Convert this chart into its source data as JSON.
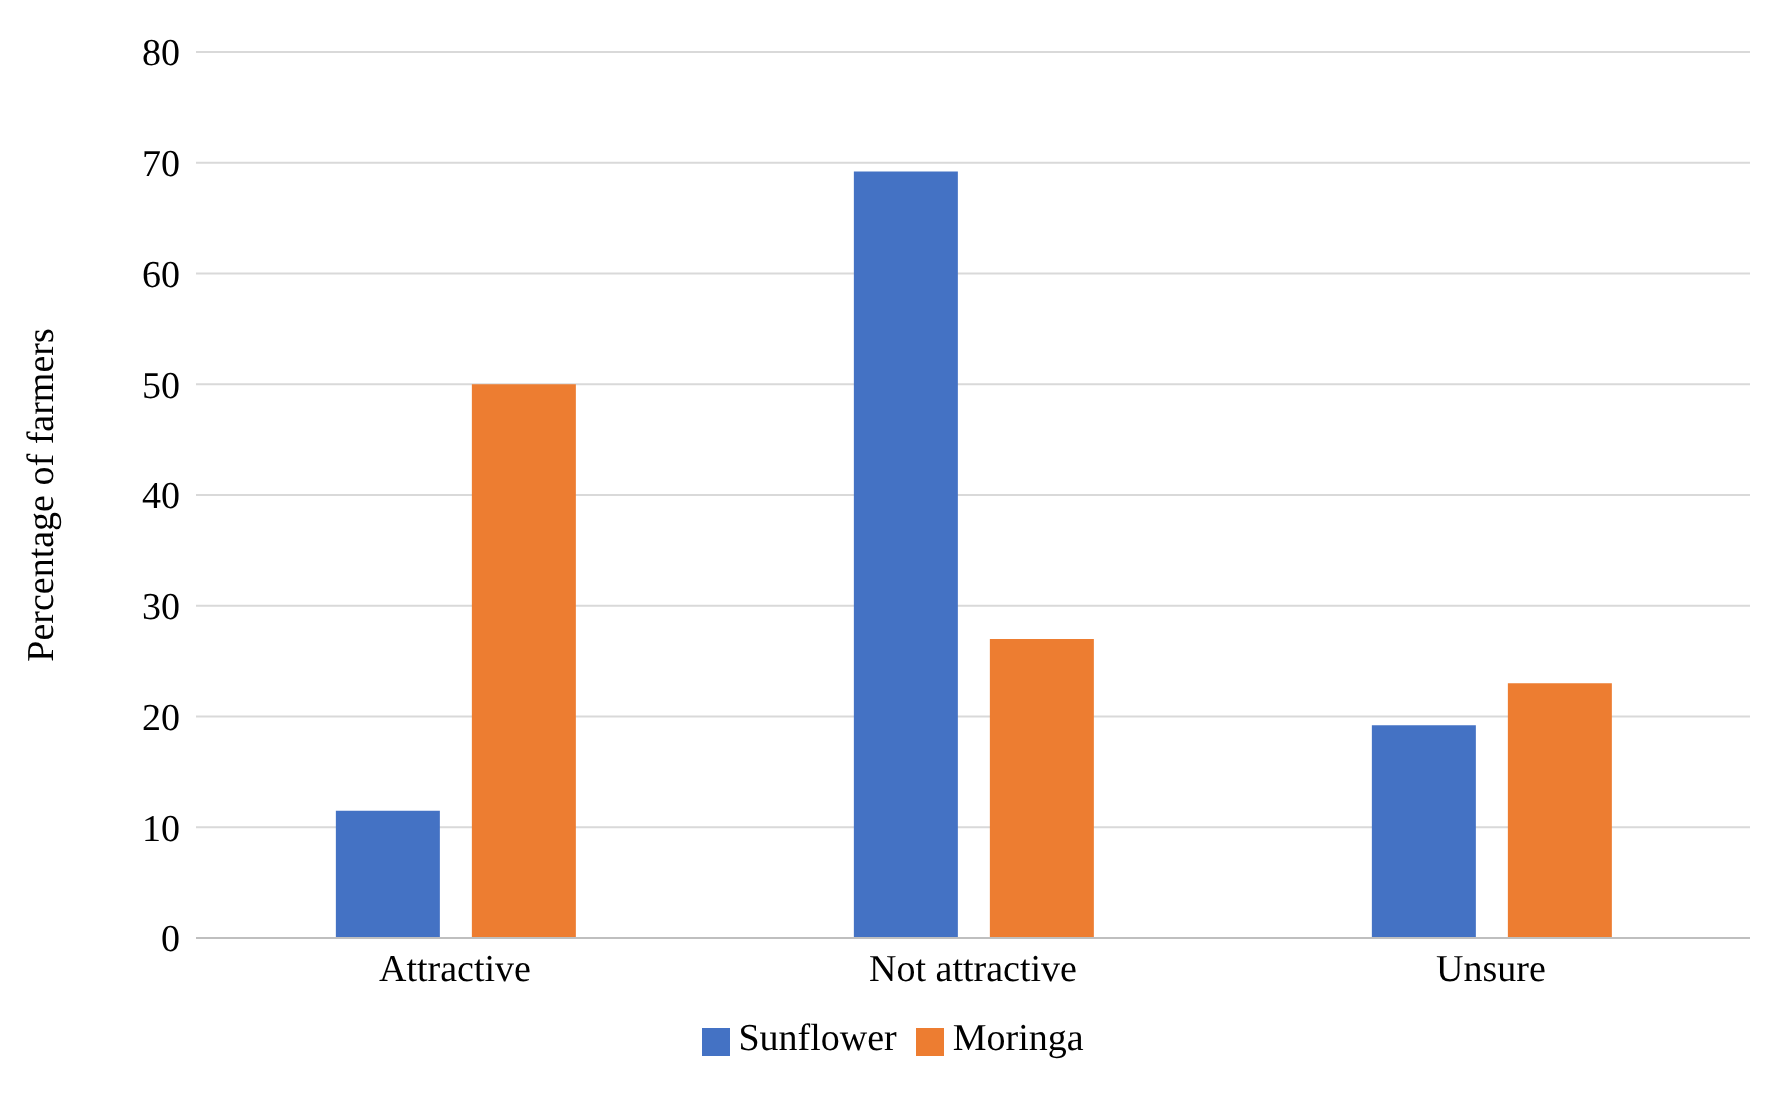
{
  "chart_data": {
    "type": "bar",
    "ylabel": "Percentage of farmers",
    "categories": [
      "Attractive",
      "Not attractive",
      "Unsure"
    ],
    "series": [
      {
        "name": "Sunflower",
        "color": "#4472c4",
        "values": [
          11.5,
          69.2,
          19.2
        ]
      },
      {
        "name": "Moringa",
        "color": "#ed7d31",
        "values": [
          50,
          27,
          23
        ]
      }
    ],
    "ylim": [
      0,
      80
    ],
    "yticks": [
      0,
      10,
      20,
      30,
      40,
      50,
      60,
      70,
      80
    ],
    "grid": "y",
    "legend": "bottom"
  }
}
